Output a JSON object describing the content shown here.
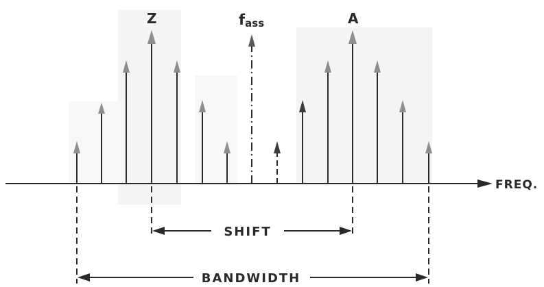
{
  "labels": {
    "z": "Z",
    "a": "A",
    "f_main": "f",
    "f_sub": "ass",
    "freq": "FREQ.",
    "shift": "SHIFT",
    "bandwidth": "BANDWIDTH"
  },
  "colors": {
    "ink": "#2a2a2a",
    "shade": "#f3f3f3",
    "arrow_head": "#8e8e8e",
    "arrow_head_dark": "#3c3c3c"
  }
}
